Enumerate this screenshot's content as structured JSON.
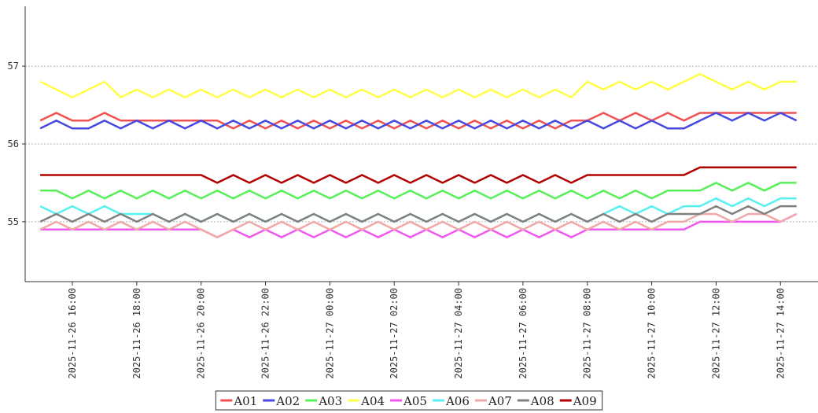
{
  "chart_data": {
    "type": "line",
    "x": [
      "2025-11-26 15:00",
      "2025-11-26 15:30",
      "2025-11-26 16:00",
      "2025-11-26 16:30",
      "2025-11-26 17:00",
      "2025-11-26 17:30",
      "2025-11-26 18:00",
      "2025-11-26 18:30",
      "2025-11-26 19:00",
      "2025-11-26 19:30",
      "2025-11-26 20:00",
      "2025-11-26 20:30",
      "2025-11-26 21:00",
      "2025-11-26 21:30",
      "2025-11-26 22:00",
      "2025-11-26 22:30",
      "2025-11-26 23:00",
      "2025-11-26 23:30",
      "2025-11-27 00:00",
      "2025-11-27 00:30",
      "2025-11-27 01:00",
      "2025-11-27 01:30",
      "2025-11-27 02:00",
      "2025-11-27 02:30",
      "2025-11-27 03:00",
      "2025-11-27 03:30",
      "2025-11-27 04:00",
      "2025-11-27 04:30",
      "2025-11-27 05:00",
      "2025-11-27 05:30",
      "2025-11-27 06:00",
      "2025-11-27 06:30",
      "2025-11-27 07:00",
      "2025-11-27 07:30",
      "2025-11-27 08:00",
      "2025-11-27 08:30",
      "2025-11-27 09:00",
      "2025-11-27 09:30",
      "2025-11-27 10:00",
      "2025-11-27 10:30",
      "2025-11-27 11:00",
      "2025-11-27 11:30",
      "2025-11-27 12:00",
      "2025-11-27 12:30",
      "2025-11-27 13:00",
      "2025-11-27 13:30",
      "2025-11-27 14:00",
      "2025-11-27 14:30"
    ],
    "series": [
      {
        "name": "A01",
        "color": "#f05050",
        "values": [
          56.3,
          56.4,
          56.3,
          56.3,
          56.4,
          56.3,
          56.3,
          56.3,
          56.3,
          56.3,
          56.3,
          56.3,
          56.2,
          56.3,
          56.2,
          56.3,
          56.2,
          56.3,
          56.2,
          56.3,
          56.2,
          56.3,
          56.2,
          56.3,
          56.2,
          56.3,
          56.2,
          56.3,
          56.2,
          56.3,
          56.2,
          56.3,
          56.2,
          56.3,
          56.3,
          56.4,
          56.3,
          56.4,
          56.3,
          56.4,
          56.3,
          56.4,
          56.4,
          56.4,
          56.4,
          56.4,
          56.4,
          56.4
        ]
      },
      {
        "name": "A02",
        "color": "#4848e0",
        "values": [
          56.2,
          56.3,
          56.2,
          56.2,
          56.3,
          56.2,
          56.3,
          56.2,
          56.3,
          56.2,
          56.3,
          56.2,
          56.3,
          56.2,
          56.3,
          56.2,
          56.3,
          56.2,
          56.3,
          56.2,
          56.3,
          56.2,
          56.3,
          56.2,
          56.3,
          56.2,
          56.3,
          56.2,
          56.3,
          56.2,
          56.3,
          56.2,
          56.3,
          56.2,
          56.3,
          56.2,
          56.3,
          56.2,
          56.3,
          56.2,
          56.2,
          56.3,
          56.4,
          56.3,
          56.4,
          56.3,
          56.4,
          56.3
        ]
      },
      {
        "name": "A03",
        "color": "#58f058",
        "values": [
          55.4,
          55.4,
          55.3,
          55.4,
          55.3,
          55.4,
          55.3,
          55.4,
          55.3,
          55.4,
          55.3,
          55.4,
          55.3,
          55.4,
          55.3,
          55.4,
          55.3,
          55.4,
          55.3,
          55.4,
          55.3,
          55.4,
          55.3,
          55.4,
          55.3,
          55.4,
          55.3,
          55.4,
          55.3,
          55.4,
          55.3,
          55.4,
          55.3,
          55.4,
          55.3,
          55.4,
          55.3,
          55.4,
          55.3,
          55.4,
          55.4,
          55.4,
          55.5,
          55.4,
          55.5,
          55.4,
          55.5,
          55.5
        ]
      },
      {
        "name": "A04",
        "color": "#ffff48",
        "values": [
          56.8,
          56.7,
          56.6,
          56.7,
          56.8,
          56.6,
          56.7,
          56.6,
          56.7,
          56.6,
          56.7,
          56.6,
          56.7,
          56.6,
          56.7,
          56.6,
          56.7,
          56.6,
          56.7,
          56.6,
          56.7,
          56.6,
          56.7,
          56.6,
          56.7,
          56.6,
          56.7,
          56.6,
          56.7,
          56.6,
          56.7,
          56.6,
          56.7,
          56.6,
          56.8,
          56.7,
          56.8,
          56.7,
          56.8,
          56.7,
          56.8,
          56.9,
          56.8,
          56.7,
          56.8,
          56.7,
          56.8,
          56.8
        ]
      },
      {
        "name": "A05",
        "color": "#f058f0",
        "values": [
          54.9,
          54.9,
          54.9,
          54.9,
          54.9,
          54.9,
          54.9,
          54.9,
          54.9,
          54.9,
          54.9,
          54.8,
          54.9,
          54.8,
          54.9,
          54.8,
          54.9,
          54.8,
          54.9,
          54.8,
          54.9,
          54.8,
          54.9,
          54.8,
          54.9,
          54.8,
          54.9,
          54.8,
          54.9,
          54.8,
          54.9,
          54.8,
          54.9,
          54.8,
          54.9,
          54.9,
          54.9,
          54.9,
          54.9,
          54.9,
          54.9,
          55.0,
          55.0,
          55.0,
          55.0,
          55.0,
          55.0,
          55.1
        ]
      },
      {
        "name": "A06",
        "color": "#58f0f0",
        "values": [
          55.2,
          55.1,
          55.2,
          55.1,
          55.2,
          55.1,
          55.1,
          55.1,
          55.0,
          55.1,
          55.0,
          55.1,
          55.0,
          55.1,
          55.0,
          55.1,
          55.0,
          55.1,
          55.0,
          55.1,
          55.0,
          55.1,
          55.0,
          55.1,
          55.0,
          55.1,
          55.0,
          55.1,
          55.0,
          55.1,
          55.0,
          55.1,
          55.0,
          55.1,
          55.0,
          55.1,
          55.2,
          55.1,
          55.2,
          55.1,
          55.2,
          55.2,
          55.3,
          55.2,
          55.3,
          55.2,
          55.3,
          55.3
        ]
      },
      {
        "name": "A07",
        "color": "#f0a8a8",
        "values": [
          54.9,
          55.0,
          54.9,
          55.0,
          54.9,
          55.0,
          54.9,
          55.0,
          54.9,
          55.0,
          54.9,
          54.8,
          54.9,
          55.0,
          54.9,
          55.0,
          54.9,
          55.0,
          54.9,
          55.0,
          54.9,
          55.0,
          54.9,
          55.0,
          54.9,
          55.0,
          54.9,
          55.0,
          54.9,
          55.0,
          54.9,
          55.0,
          54.9,
          55.0,
          54.9,
          55.0,
          54.9,
          55.0,
          54.9,
          55.0,
          55.0,
          55.1,
          55.1,
          55.0,
          55.1,
          55.1,
          55.0,
          55.1
        ]
      },
      {
        "name": "A08",
        "color": "#808080",
        "values": [
          55.0,
          55.1,
          55.0,
          55.1,
          55.0,
          55.1,
          55.0,
          55.1,
          55.0,
          55.1,
          55.0,
          55.1,
          55.0,
          55.1,
          55.0,
          55.1,
          55.0,
          55.1,
          55.0,
          55.1,
          55.0,
          55.1,
          55.0,
          55.1,
          55.0,
          55.1,
          55.0,
          55.1,
          55.0,
          55.1,
          55.0,
          55.1,
          55.0,
          55.1,
          55.0,
          55.1,
          55.0,
          55.1,
          55.0,
          55.1,
          55.1,
          55.1,
          55.2,
          55.1,
          55.2,
          55.1,
          55.2,
          55.2
        ]
      },
      {
        "name": "A09",
        "color": "#b00000",
        "values": [
          55.6,
          55.6,
          55.6,
          55.6,
          55.6,
          55.6,
          55.6,
          55.6,
          55.6,
          55.6,
          55.6,
          55.5,
          55.6,
          55.5,
          55.6,
          55.5,
          55.6,
          55.5,
          55.6,
          55.5,
          55.6,
          55.5,
          55.6,
          55.5,
          55.6,
          55.5,
          55.6,
          55.5,
          55.6,
          55.5,
          55.6,
          55.5,
          55.6,
          55.5,
          55.6,
          55.6,
          55.6,
          55.6,
          55.6,
          55.6,
          55.6,
          55.7,
          55.7,
          55.7,
          55.7,
          55.7,
          55.7,
          55.7
        ]
      }
    ],
    "xlim": [
      "2025-11-26 14:32",
      "2025-11-27 15:10"
    ],
    "xticks": [
      "2025-11-26 16:00",
      "2025-11-26 18:00",
      "2025-11-26 20:00",
      "2025-11-26 22:00",
      "2025-11-27 00:00",
      "2025-11-27 02:00",
      "2025-11-27 04:00",
      "2025-11-27 06:00",
      "2025-11-27 08:00",
      "2025-11-27 10:00",
      "2025-11-27 12:00",
      "2025-11-27 14:00"
    ],
    "ylim": [
      54.23,
      57.77
    ],
    "yticks": [
      55,
      56,
      57
    ],
    "grid": true,
    "legend": "bottom"
  }
}
